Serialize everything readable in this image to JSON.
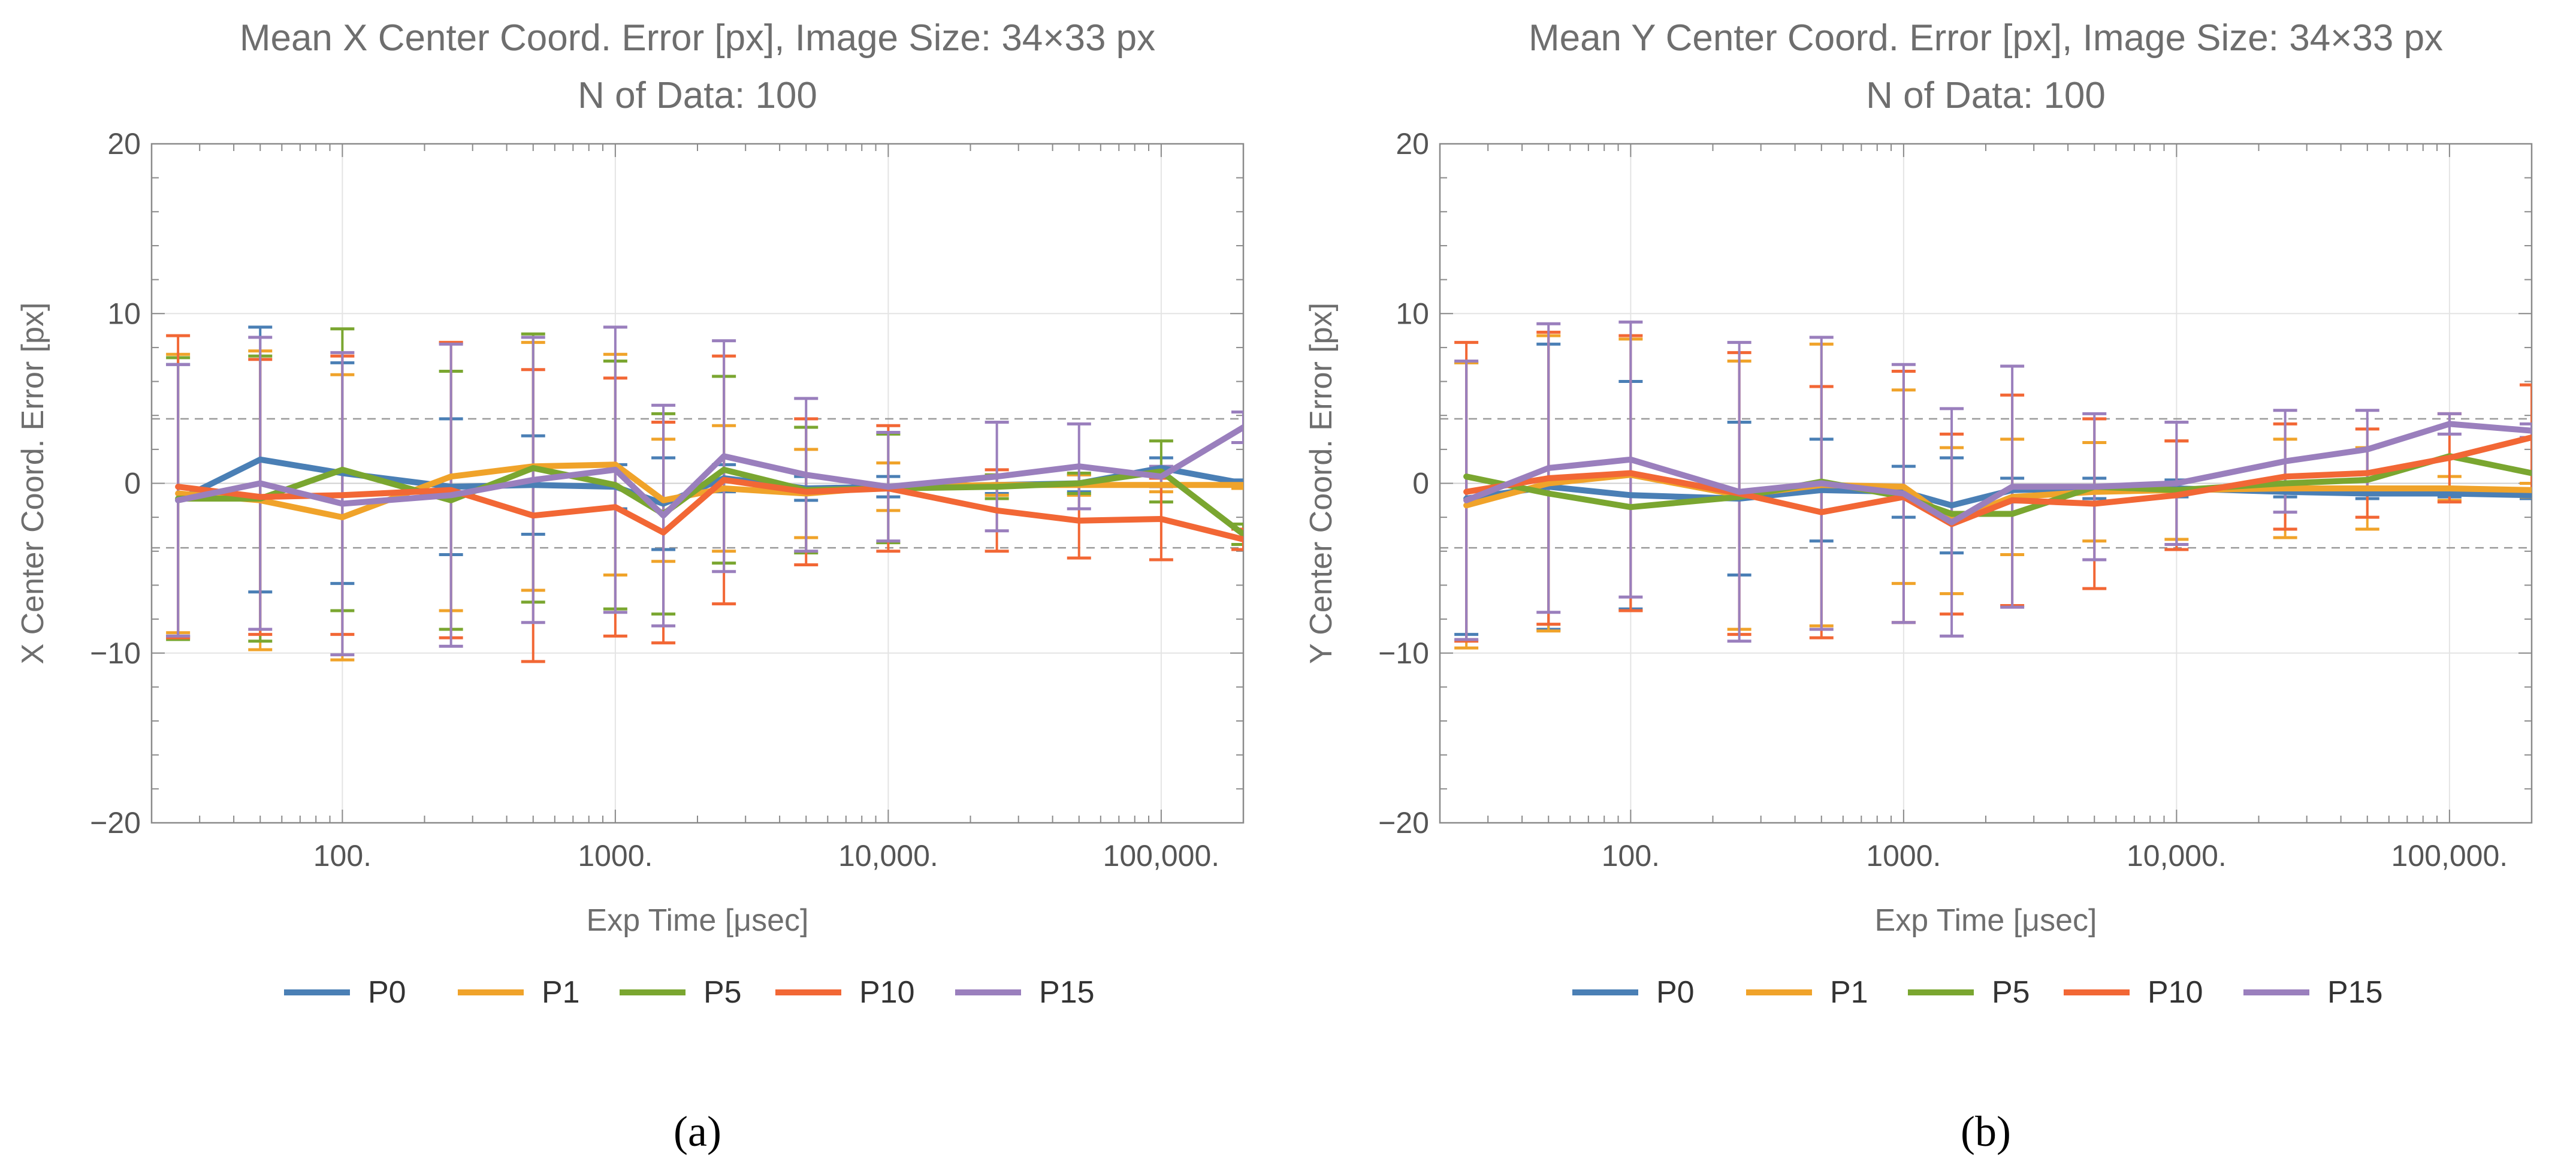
{
  "chart_data": [
    {
      "type": "line",
      "panel_label": "(a)",
      "title": "Mean X Center Coord. Error [px], Image Size: 34×33 px",
      "subtitle": "N of Data: 100",
      "xlabel": "Exp Time [μsec]",
      "ylabel": "X Center Coord. Error [px]",
      "x_scale": "log",
      "xlim": [
        20,
        200000
      ],
      "ylim": [
        -20,
        20
      ],
      "xticks": [
        100,
        1000,
        10000,
        100000
      ],
      "xtick_labels": [
        "100.",
        "1000.",
        "10,000.",
        "100,000."
      ],
      "yticks": [
        -20,
        -10,
        0,
        10,
        20
      ],
      "ytick_labels": [
        "−20",
        "−10",
        "0",
        "10",
        "20"
      ],
      "reference_lines": [
        3.8,
        -3.8
      ],
      "grid": true,
      "legend_position": "bottom",
      "x": [
        25,
        50,
        100,
        250,
        500,
        1000,
        1500,
        2500,
        5000,
        10000,
        25000,
        50000,
        100000,
        200000
      ],
      "series": [
        {
          "name": "P0",
          "color": "#4a7fb5",
          "values": [
            -1.0,
            1.4,
            0.6,
            -0.2,
            -0.1,
            -0.2,
            -1.2,
            0.3,
            -0.3,
            -0.2,
            -0.1,
            0.0,
            0.9,
            0.0
          ],
          "errors": [
            8.0,
            7.8,
            6.5,
            4.0,
            2.9,
            1.3,
            2.7,
            0.8,
            0.7,
            0.6,
            0.5,
            0.5,
            0.6,
            0.2
          ]
        },
        {
          "name": "P1",
          "color": "#f0a32a",
          "values": [
            -0.6,
            -1.0,
            -2.0,
            0.4,
            1.0,
            1.1,
            -1.0,
            -0.3,
            -0.6,
            -0.2,
            -0.1,
            -0.1,
            -0.1,
            -0.1
          ],
          "errors": [
            8.2,
            8.8,
            8.4,
            7.9,
            7.3,
            6.5,
            3.6,
            3.7,
            2.6,
            1.4,
            0.6,
            0.6,
            0.4,
            0.2
          ]
        },
        {
          "name": "P5",
          "color": "#7aa630",
          "values": [
            -0.9,
            -0.9,
            0.8,
            -1.0,
            0.9,
            -0.1,
            -1.8,
            0.8,
            -0.4,
            -0.3,
            -0.2,
            0.0,
            0.7,
            -3.0
          ],
          "errors": [
            8.3,
            8.4,
            8.3,
            7.6,
            7.9,
            7.3,
            5.9,
            5.5,
            3.7,
            3.2,
            0.7,
            0.6,
            1.8,
            0.6
          ]
        },
        {
          "name": "P10",
          "color": "#f26735",
          "values": [
            -0.2,
            -0.8,
            -0.7,
            -0.4,
            -1.9,
            -1.4,
            -2.9,
            0.2,
            -0.5,
            -0.3,
            -1.6,
            -2.2,
            -2.1,
            -3.3
          ],
          "errors": [
            8.9,
            8.1,
            8.2,
            8.7,
            8.6,
            7.6,
            6.5,
            7.3,
            4.3,
            3.7,
            2.4,
            2.2,
            2.4,
            0.6
          ]
        },
        {
          "name": "P15",
          "color": "#9a7fbd",
          "values": [
            -1.0,
            0.0,
            -1.2,
            -0.7,
            0.2,
            0.8,
            -1.9,
            1.6,
            0.5,
            -0.2,
            0.4,
            1.0,
            0.4,
            3.3
          ],
          "errors": [
            8.0,
            8.6,
            8.9,
            8.9,
            8.4,
            8.4,
            6.5,
            6.8,
            4.5,
            3.2,
            3.2,
            2.5,
            0.6,
            0.9
          ]
        }
      ]
    },
    {
      "type": "line",
      "panel_label": "(b)",
      "title": "Mean Y Center Coord. Error [px], Image Size: 34×33 px",
      "subtitle": "N of Data: 100",
      "xlabel": "Exp Time [μsec]",
      "ylabel": "Y Center Coord. Error [px]",
      "x_scale": "log",
      "xlim": [
        20,
        200000
      ],
      "ylim": [
        -20,
        20
      ],
      "xticks": [
        100,
        1000,
        10000,
        100000
      ],
      "xtick_labels": [
        "100.",
        "1000.",
        "10,000.",
        "100,000."
      ],
      "yticks": [
        -20,
        -10,
        0,
        10,
        20
      ],
      "ytick_labels": [
        "−20",
        "−10",
        "0",
        "10",
        "20"
      ],
      "reference_lines": [
        3.8,
        -3.8
      ],
      "grid": true,
      "legend_position": "bottom",
      "x": [
        25,
        50,
        100,
        250,
        500,
        1000,
        1500,
        2500,
        5000,
        10000,
        25000,
        50000,
        100000,
        200000
      ],
      "series": [
        {
          "name": "P0",
          "color": "#4a7fb5",
          "values": [
            -0.9,
            -0.2,
            -0.7,
            -0.9,
            -0.4,
            -0.5,
            -1.3,
            -0.4,
            -0.3,
            -0.3,
            -0.5,
            -0.6,
            -0.6,
            -0.7
          ],
          "errors": [
            8.0,
            8.4,
            6.7,
            4.5,
            3.0,
            1.5,
            2.8,
            0.7,
            0.6,
            0.5,
            0.3,
            0.3,
            0.2,
            0.2
          ]
        },
        {
          "name": "P1",
          "color": "#f0a32a",
          "values": [
            -1.3,
            0.0,
            0.5,
            -0.7,
            -0.1,
            -0.2,
            -2.2,
            -0.8,
            -0.5,
            -0.4,
            -0.3,
            -0.3,
            -0.3,
            -0.4
          ],
          "errors": [
            8.4,
            8.7,
            8.0,
            7.9,
            8.3,
            5.7,
            4.3,
            3.4,
            2.9,
            2.9,
            2.9,
            2.4,
            0.7,
            0.4
          ]
        },
        {
          "name": "P5",
          "color": "#7aa630",
          "values": [
            0.4,
            -0.6,
            -1.4,
            -0.8,
            0.1,
            -0.8,
            -1.8,
            -1.8,
            -0.2,
            -0.4,
            0.0,
            0.2,
            1.6,
            0.6
          ]
        },
        {
          "name": "P10",
          "color": "#f26735",
          "values": [
            -0.5,
            0.3,
            0.6,
            -0.6,
            -1.7,
            -0.8,
            -2.4,
            -1.0,
            -1.2,
            -0.7,
            0.4,
            0.6,
            1.5,
            2.7
          ],
          "errors": [
            8.8,
            8.6,
            8.1,
            8.3,
            7.4,
            7.4,
            5.3,
            6.2,
            5.0,
            3.2,
            3.1,
            2.6,
            2.6,
            3.1
          ]
        },
        {
          "name": "P15",
          "color": "#9a7fbd",
          "values": [
            -1.0,
            0.9,
            1.4,
            -0.5,
            0.0,
            -0.6,
            -2.3,
            -0.2,
            -0.2,
            0.0,
            1.3,
            2.0,
            3.5,
            3.1
          ],
          "errors": [
            8.2,
            8.5,
            8.1,
            8.8,
            8.6,
            7.6,
            6.7,
            7.1,
            4.3,
            3.6,
            3.0,
            2.3,
            0.6,
            0.4
          ]
        }
      ]
    }
  ]
}
